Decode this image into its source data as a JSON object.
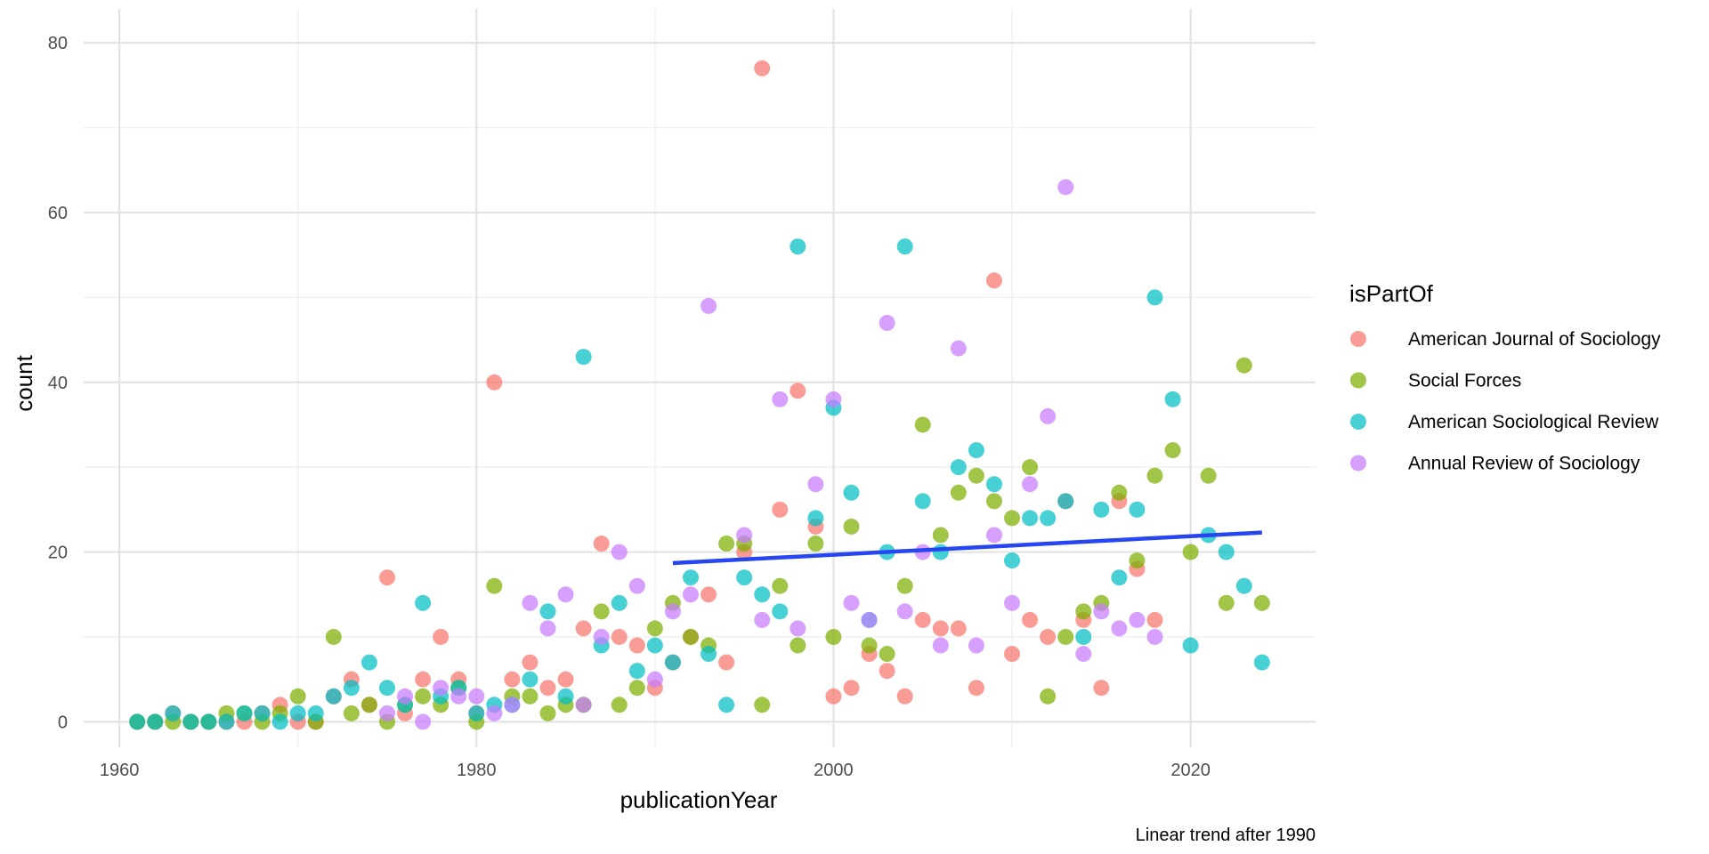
{
  "chart_data": {
    "type": "scatter",
    "title": "",
    "xlabel": "publicationYear",
    "ylabel": "count",
    "caption": "Linear trend after 1990",
    "xlim": [
      1958,
      2027
    ],
    "ylim": [
      -3,
      84
    ],
    "x_ticks": [
      1960,
      1980,
      2000,
      2020
    ],
    "y_ticks": [
      0,
      20,
      40,
      60,
      80
    ],
    "x_tick_labels": [
      "1960",
      "1980",
      "2000",
      "2020"
    ],
    "y_tick_labels": [
      "0",
      "20",
      "40",
      "60",
      "80"
    ],
    "grid": true,
    "legend": {
      "title": "isPartOf",
      "position": "right"
    },
    "series": [
      {
        "name": "American Journal of Sociology",
        "color": "#F8766D",
        "points": [
          [
            1961,
            0
          ],
          [
            1962,
            0
          ],
          [
            1963,
            1
          ],
          [
            1964,
            0
          ],
          [
            1965,
            0
          ],
          [
            1966,
            0
          ],
          [
            1967,
            0
          ],
          [
            1968,
            1
          ],
          [
            1969,
            2
          ],
          [
            1970,
            0
          ],
          [
            1971,
            0
          ],
          [
            1972,
            3
          ],
          [
            1973,
            5
          ],
          [
            1974,
            2
          ],
          [
            1975,
            17
          ],
          [
            1976,
            1
          ],
          [
            1977,
            5
          ],
          [
            1978,
            10
          ],
          [
            1979,
            5
          ],
          [
            1980,
            1
          ],
          [
            1981,
            40
          ],
          [
            1982,
            5
          ],
          [
            1983,
            7
          ],
          [
            1984,
            4
          ],
          [
            1985,
            5
          ],
          [
            1986,
            11
          ],
          [
            1987,
            21
          ],
          [
            1988,
            10
          ],
          [
            1989,
            9
          ],
          [
            1990,
            4
          ],
          [
            1991,
            7
          ],
          [
            1992,
            10
          ],
          [
            1993,
            15
          ],
          [
            1994,
            7
          ],
          [
            1995,
            20
          ],
          [
            1996,
            77
          ],
          [
            1997,
            25
          ],
          [
            1998,
            39
          ],
          [
            1999,
            23
          ],
          [
            2000,
            3
          ],
          [
            2001,
            4
          ],
          [
            2002,
            8
          ],
          [
            2003,
            6
          ],
          [
            2004,
            3
          ],
          [
            2005,
            12
          ],
          [
            2006,
            11
          ],
          [
            2007,
            11
          ],
          [
            2008,
            4
          ],
          [
            2009,
            52
          ],
          [
            2010,
            8
          ],
          [
            2011,
            12
          ],
          [
            2012,
            10
          ],
          [
            2013,
            26
          ],
          [
            2014,
            12
          ],
          [
            2015,
            4
          ],
          [
            2016,
            26
          ],
          [
            2017,
            18
          ],
          [
            2018,
            12
          ]
        ]
      },
      {
        "name": "Social Forces",
        "color": "#7CAE00",
        "points": [
          [
            1961,
            0
          ],
          [
            1962,
            0
          ],
          [
            1963,
            0
          ],
          [
            1964,
            0
          ],
          [
            1965,
            0
          ],
          [
            1966,
            1
          ],
          [
            1967,
            1
          ],
          [
            1968,
            0
          ],
          [
            1969,
            1
          ],
          [
            1970,
            3
          ],
          [
            1971,
            0
          ],
          [
            1972,
            10
          ],
          [
            1973,
            1
          ],
          [
            1974,
            2
          ],
          [
            1975,
            0
          ],
          [
            1976,
            2
          ],
          [
            1977,
            3
          ],
          [
            1978,
            2
          ],
          [
            1979,
            4
          ],
          [
            1980,
            0
          ],
          [
            1981,
            16
          ],
          [
            1982,
            3
          ],
          [
            1983,
            3
          ],
          [
            1984,
            1
          ],
          [
            1985,
            2
          ],
          [
            1986,
            2
          ],
          [
            1987,
            13
          ],
          [
            1988,
            2
          ],
          [
            1989,
            4
          ],
          [
            1990,
            11
          ],
          [
            1991,
            14
          ],
          [
            1992,
            10
          ],
          [
            1993,
            9
          ],
          [
            1994,
            21
          ],
          [
            1995,
            21
          ],
          [
            1996,
            2
          ],
          [
            1997,
            16
          ],
          [
            1998,
            9
          ],
          [
            1999,
            21
          ],
          [
            2000,
            10
          ],
          [
            2001,
            23
          ],
          [
            2002,
            9
          ],
          [
            2003,
            8
          ],
          [
            2004,
            16
          ],
          [
            2005,
            35
          ],
          [
            2006,
            22
          ],
          [
            2007,
            27
          ],
          [
            2008,
            29
          ],
          [
            2009,
            26
          ],
          [
            2010,
            24
          ],
          [
            2011,
            30
          ],
          [
            2012,
            3
          ],
          [
            2013,
            10
          ],
          [
            2014,
            13
          ],
          [
            2015,
            14
          ],
          [
            2016,
            27
          ],
          [
            2017,
            19
          ],
          [
            2018,
            29
          ],
          [
            2019,
            32
          ],
          [
            2020,
            20
          ],
          [
            2021,
            29
          ],
          [
            2022,
            14
          ],
          [
            2023,
            42
          ],
          [
            2024,
            14
          ]
        ]
      },
      {
        "name": "American Sociological Review",
        "color": "#00BFC4",
        "points": [
          [
            1961,
            0
          ],
          [
            1962,
            0
          ],
          [
            1963,
            1
          ],
          [
            1964,
            0
          ],
          [
            1965,
            0
          ],
          [
            1966,
            0
          ],
          [
            1967,
            1
          ],
          [
            1968,
            1
          ],
          [
            1969,
            0
          ],
          [
            1970,
            1
          ],
          [
            1971,
            1
          ],
          [
            1972,
            3
          ],
          [
            1973,
            4
          ],
          [
            1974,
            7
          ],
          [
            1975,
            4
          ],
          [
            1976,
            2
          ],
          [
            1977,
            14
          ],
          [
            1978,
            3
          ],
          [
            1979,
            4
          ],
          [
            1980,
            1
          ],
          [
            1981,
            2
          ],
          [
            1982,
            2
          ],
          [
            1983,
            5
          ],
          [
            1984,
            13
          ],
          [
            1985,
            3
          ],
          [
            1986,
            43
          ],
          [
            1987,
            9
          ],
          [
            1988,
            14
          ],
          [
            1989,
            6
          ],
          [
            1990,
            9
          ],
          [
            1991,
            7
          ],
          [
            1992,
            17
          ],
          [
            1993,
            8
          ],
          [
            1994,
            2
          ],
          [
            1995,
            17
          ],
          [
            1996,
            15
          ],
          [
            1997,
            13
          ],
          [
            1998,
            56
          ],
          [
            1999,
            24
          ],
          [
            2000,
            37
          ],
          [
            2001,
            27
          ],
          [
            2002,
            12
          ],
          [
            2003,
            20
          ],
          [
            2004,
            56
          ],
          [
            2005,
            26
          ],
          [
            2006,
            20
          ],
          [
            2007,
            30
          ],
          [
            2008,
            32
          ],
          [
            2009,
            28
          ],
          [
            2010,
            19
          ],
          [
            2011,
            24
          ],
          [
            2012,
            24
          ],
          [
            2013,
            26
          ],
          [
            2014,
            10
          ],
          [
            2015,
            25
          ],
          [
            2016,
            17
          ],
          [
            2017,
            25
          ],
          [
            2018,
            50
          ],
          [
            2019,
            38
          ],
          [
            2020,
            9
          ],
          [
            2021,
            22
          ],
          [
            2022,
            20
          ],
          [
            2023,
            16
          ],
          [
            2024,
            7
          ]
        ]
      },
      {
        "name": "Annual Review of Sociology",
        "color": "#C77CFF",
        "points": [
          [
            1975,
            1
          ],
          [
            1976,
            3
          ],
          [
            1977,
            0
          ],
          [
            1978,
            4
          ],
          [
            1979,
            3
          ],
          [
            1980,
            3
          ],
          [
            1981,
            1
          ],
          [
            1982,
            2
          ],
          [
            1983,
            14
          ],
          [
            1984,
            11
          ],
          [
            1985,
            15
          ],
          [
            1986,
            2
          ],
          [
            1987,
            10
          ],
          [
            1988,
            20
          ],
          [
            1989,
            16
          ],
          [
            1990,
            5
          ],
          [
            1991,
            13
          ],
          [
            1992,
            15
          ],
          [
            1993,
            49
          ],
          [
            1995,
            22
          ],
          [
            1996,
            12
          ],
          [
            1997,
            38
          ],
          [
            1998,
            11
          ],
          [
            1999,
            28
          ],
          [
            2000,
            38
          ],
          [
            2001,
            14
          ],
          [
            2002,
            12
          ],
          [
            2003,
            47
          ],
          [
            2004,
            13
          ],
          [
            2005,
            20
          ],
          [
            2006,
            9
          ],
          [
            2007,
            44
          ],
          [
            2008,
            9
          ],
          [
            2009,
            22
          ],
          [
            2010,
            14
          ],
          [
            2011,
            28
          ],
          [
            2012,
            36
          ],
          [
            2013,
            63
          ],
          [
            2014,
            8
          ],
          [
            2015,
            13
          ],
          [
            2016,
            11
          ],
          [
            2017,
            12
          ],
          [
            2018,
            10
          ]
        ]
      }
    ],
    "trend": {
      "color": "#2546F0",
      "from": [
        1991,
        18.7
      ],
      "to": [
        2024,
        22.3
      ]
    }
  }
}
